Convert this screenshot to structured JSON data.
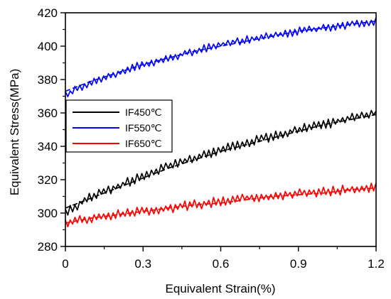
{
  "chart_data": {
    "type": "line",
    "xlabel": "Equivalent Strain(%)",
    "ylabel": "Equivalent Stress(MPa)",
    "xlim": [
      0,
      1.2
    ],
    "ylim": [
      280,
      420
    ],
    "xticks": [
      0,
      0.3,
      0.6,
      0.9,
      1.2
    ],
    "xtick_labels": [
      "0",
      "0.3",
      "0.6",
      "0.9",
      "1.2"
    ],
    "yticks": [
      280,
      300,
      320,
      340,
      360,
      380,
      400,
      420
    ],
    "ytick_labels": [
      "280",
      "300",
      "320",
      "340",
      "360",
      "380",
      "400",
      "420"
    ],
    "grid": false,
    "legend_position": "middle-left",
    "series": [
      {
        "name": "IF450℃",
        "color": "#000000",
        "x": [
          0.0,
          0.1,
          0.2,
          0.3,
          0.4,
          0.5,
          0.6,
          0.7,
          0.8,
          0.9,
          1.0,
          1.1,
          1.2
        ],
        "y": [
          300,
          310,
          316,
          322,
          328,
          333,
          338,
          342,
          346,
          350,
          353,
          357,
          360
        ],
        "fit_y": [
          303,
          309,
          315,
          321,
          327,
          332,
          337,
          341,
          345,
          349,
          353,
          356,
          359
        ],
        "noise_amplitude": 3
      },
      {
        "name": "IF550℃",
        "color": "#0000ff",
        "x": [
          0.0,
          0.1,
          0.2,
          0.3,
          0.4,
          0.5,
          0.6,
          0.7,
          0.8,
          0.9,
          1.0,
          1.1,
          1.2
        ],
        "y": [
          371,
          378,
          384,
          389,
          393,
          397,
          401,
          404,
          406,
          409,
          411,
          413,
          415
        ],
        "fit_y": [
          373,
          379,
          384,
          389,
          393,
          397,
          400,
          403,
          406,
          409,
          411,
          413,
          415
        ],
        "noise_amplitude": 2.5
      },
      {
        "name": "IF650℃",
        "color": "#ff0000",
        "x": [
          0.0,
          0.1,
          0.2,
          0.3,
          0.4,
          0.5,
          0.6,
          0.7,
          0.8,
          0.9,
          1.0,
          1.1,
          1.2
        ],
        "y": [
          294,
          297,
          299,
          301,
          303,
          305,
          307,
          309,
          310,
          312,
          313,
          314,
          316
        ],
        "fit_y": [
          294,
          297,
          299,
          301,
          303,
          305,
          306,
          308,
          310,
          311,
          312,
          314,
          315
        ],
        "noise_amplitude": 3
      }
    ]
  }
}
